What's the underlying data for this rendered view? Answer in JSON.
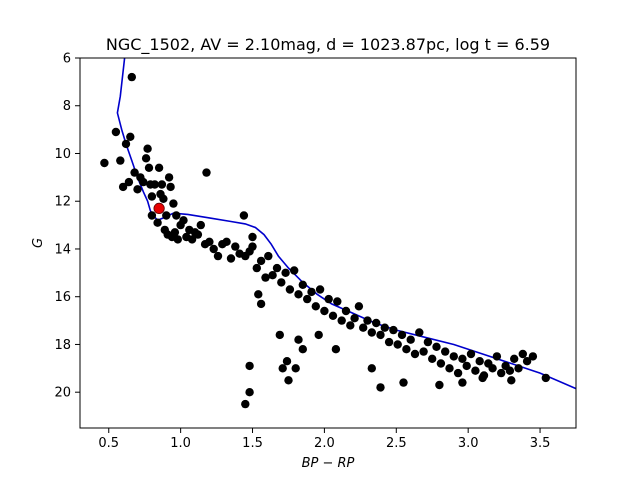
{
  "chart_data": {
    "type": "scatter",
    "title": "NGC_1502, AV = 2.10mag, d = 1023.87pc, log t = 6.59",
    "xlabel": "BP − RP",
    "ylabel": "G",
    "xlim": [
      0.3,
      3.75
    ],
    "ylim": [
      21.5,
      6.0
    ],
    "y_inverted": true,
    "x_ticks": [
      "0.5",
      "1.0",
      "1.5",
      "2.0",
      "2.5",
      "3.0",
      "3.5"
    ],
    "y_ticks": [
      "6",
      "8",
      "10",
      "12",
      "14",
      "16",
      "18",
      "20"
    ],
    "grid": false,
    "colors": {
      "stars": "#000000",
      "highlight": "#e60000",
      "isochrone": "#0000cc"
    },
    "series": [
      {
        "type": "line",
        "points": [
          [
            0.61,
            6.0
          ],
          [
            0.58,
            7.6
          ],
          [
            0.56,
            8.3
          ],
          [
            0.59,
            9.0
          ],
          [
            0.62,
            9.6
          ],
          [
            0.66,
            10.3
          ],
          [
            0.7,
            11.0
          ],
          [
            0.74,
            11.6
          ],
          [
            0.77,
            12.0
          ],
          [
            0.79,
            12.4
          ],
          [
            0.81,
            12.6
          ],
          [
            0.84,
            12.8
          ],
          [
            0.88,
            12.7
          ],
          [
            0.95,
            12.5
          ],
          [
            1.05,
            12.55
          ],
          [
            1.2,
            12.7
          ],
          [
            1.35,
            12.85
          ],
          [
            1.45,
            12.95
          ],
          [
            1.52,
            13.1
          ],
          [
            1.58,
            13.4
          ],
          [
            1.63,
            13.8
          ],
          [
            1.68,
            14.3
          ],
          [
            1.75,
            14.8
          ],
          [
            1.85,
            15.4
          ],
          [
            1.95,
            15.9
          ],
          [
            2.05,
            16.3
          ],
          [
            2.2,
            16.7
          ],
          [
            2.35,
            17.1
          ],
          [
            2.5,
            17.4
          ],
          [
            2.7,
            17.7
          ],
          [
            2.9,
            18.0
          ],
          [
            3.1,
            18.4
          ],
          [
            3.3,
            18.8
          ],
          [
            3.5,
            19.2
          ],
          [
            3.75,
            19.85
          ]
        ]
      },
      {
        "type": "scatter",
        "points": [
          [
            0.47,
            10.4
          ],
          [
            0.55,
            9.1
          ],
          [
            0.58,
            10.3
          ],
          [
            0.6,
            11.4
          ],
          [
            0.62,
            9.6
          ],
          [
            0.64,
            11.2
          ],
          [
            0.65,
            9.3
          ],
          [
            0.66,
            6.8
          ],
          [
            0.68,
            10.8
          ],
          [
            0.7,
            11.5
          ],
          [
            0.72,
            11.0
          ],
          [
            0.74,
            11.2
          ],
          [
            0.76,
            10.2
          ],
          [
            0.77,
            9.8
          ],
          [
            0.78,
            10.6
          ],
          [
            0.79,
            11.3
          ],
          [
            0.8,
            11.8
          ],
          [
            0.8,
            12.6
          ],
          [
            0.82,
            11.3
          ],
          [
            0.84,
            12.9
          ],
          [
            0.85,
            10.6
          ],
          [
            0.86,
            11.7
          ],
          [
            0.87,
            11.3
          ],
          [
            0.88,
            11.9
          ],
          [
            0.89,
            13.2
          ],
          [
            0.9,
            12.6
          ],
          [
            0.91,
            13.4
          ],
          [
            0.92,
            11.0
          ],
          [
            0.93,
            11.4
          ],
          [
            0.94,
            13.5
          ],
          [
            0.95,
            12.1
          ],
          [
            0.96,
            13.3
          ],
          [
            0.97,
            12.6
          ],
          [
            0.98,
            13.6
          ],
          [
            1.0,
            13.0
          ],
          [
            1.02,
            12.8
          ],
          [
            1.04,
            13.5
          ],
          [
            1.06,
            13.2
          ],
          [
            1.08,
            13.6
          ],
          [
            1.1,
            13.3
          ],
          [
            1.12,
            13.4
          ],
          [
            1.14,
            13.0
          ],
          [
            1.17,
            13.8
          ],
          [
            1.18,
            10.8
          ],
          [
            1.2,
            13.7
          ],
          [
            1.23,
            14.0
          ],
          [
            1.26,
            14.3
          ],
          [
            1.29,
            13.8
          ],
          [
            1.32,
            13.7
          ],
          [
            1.35,
            14.4
          ],
          [
            1.38,
            13.9
          ],
          [
            1.41,
            14.2
          ],
          [
            1.44,
            12.6
          ],
          [
            1.45,
            14.3
          ],
          [
            1.48,
            14.1
          ],
          [
            1.5,
            13.9
          ],
          [
            1.53,
            14.8
          ],
          [
            1.56,
            14.5
          ],
          [
            1.59,
            15.2
          ],
          [
            1.61,
            14.3
          ],
          [
            1.64,
            15.1
          ],
          [
            1.67,
            14.8
          ],
          [
            1.7,
            15.4
          ],
          [
            1.73,
            15.0
          ],
          [
            1.76,
            15.7
          ],
          [
            1.79,
            14.9
          ],
          [
            1.82,
            15.9
          ],
          [
            1.85,
            15.5
          ],
          [
            1.88,
            16.1
          ],
          [
            1.91,
            15.8
          ],
          [
            1.94,
            16.4
          ],
          [
            1.97,
            15.7
          ],
          [
            2.0,
            16.6
          ],
          [
            2.03,
            16.1
          ],
          [
            2.06,
            16.8
          ],
          [
            2.09,
            16.2
          ],
          [
            2.12,
            17.0
          ],
          [
            2.15,
            16.6
          ],
          [
            2.18,
            17.2
          ],
          [
            2.21,
            16.9
          ],
          [
            2.24,
            16.4
          ],
          [
            2.27,
            17.3
          ],
          [
            2.3,
            17.0
          ],
          [
            2.33,
            17.5
          ],
          [
            2.36,
            17.1
          ],
          [
            2.39,
            17.6
          ],
          [
            2.42,
            17.3
          ],
          [
            2.45,
            17.9
          ],
          [
            2.48,
            17.4
          ],
          [
            2.51,
            18.0
          ],
          [
            2.54,
            17.6
          ],
          [
            2.57,
            18.2
          ],
          [
            2.6,
            17.8
          ],
          [
            2.63,
            18.4
          ],
          [
            2.66,
            17.5
          ],
          [
            2.69,
            18.3
          ],
          [
            2.72,
            17.9
          ],
          [
            2.75,
            18.6
          ],
          [
            2.78,
            18.1
          ],
          [
            2.81,
            18.8
          ],
          [
            2.84,
            18.3
          ],
          [
            2.87,
            19.0
          ],
          [
            2.9,
            18.5
          ],
          [
            2.93,
            19.2
          ],
          [
            2.96,
            18.6
          ],
          [
            2.99,
            18.9
          ],
          [
            3.02,
            18.4
          ],
          [
            3.05,
            19.1
          ],
          [
            3.08,
            18.7
          ],
          [
            3.11,
            19.3
          ],
          [
            3.14,
            18.8
          ],
          [
            3.17,
            19.0
          ],
          [
            3.2,
            18.5
          ],
          [
            3.23,
            19.2
          ],
          [
            3.26,
            18.9
          ],
          [
            3.29,
            19.1
          ],
          [
            3.32,
            18.6
          ],
          [
            3.35,
            19.0
          ],
          [
            3.38,
            18.4
          ],
          [
            3.41,
            18.7
          ],
          [
            3.45,
            18.5
          ],
          [
            3.54,
            19.4
          ],
          [
            3.3,
            19.5
          ],
          [
            3.1,
            19.4
          ],
          [
            2.96,
            19.6
          ],
          [
            2.8,
            19.7
          ],
          [
            2.55,
            19.6
          ],
          [
            2.39,
            19.8
          ],
          [
            2.33,
            19.0
          ],
          [
            1.45,
            20.5
          ],
          [
            1.48,
            20.0
          ],
          [
            1.48,
            18.9
          ],
          [
            1.5,
            13.5
          ],
          [
            1.54,
            15.9
          ],
          [
            1.56,
            16.3
          ],
          [
            1.69,
            17.6
          ],
          [
            1.71,
            19.0
          ],
          [
            1.75,
            19.5
          ],
          [
            1.74,
            18.7
          ],
          [
            1.8,
            19.0
          ],
          [
            1.82,
            17.8
          ],
          [
            1.85,
            18.2
          ],
          [
            1.96,
            17.6
          ],
          [
            2.08,
            18.2
          ]
        ]
      },
      {
        "type": "scatter",
        "points": [
          [
            0.85,
            12.3
          ]
        ]
      }
    ]
  }
}
